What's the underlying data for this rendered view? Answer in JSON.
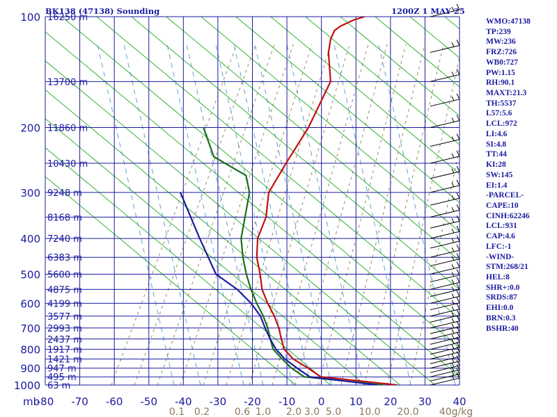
{
  "title": "BK138 (47138) Sounding",
  "date": "1200Z  1 MAY 25",
  "indices": [
    "WMO:47138",
    "TP:239",
    "MW:236",
    "FRZ:726",
    "WB0:727",
    "PW:1.15",
    "RH:90.1",
    "MAXT:21.3",
    "TH:5537",
    "L57:5.6",
    "LCL:972",
    "LI:4.6",
    "SI:4.8",
    "TT:44",
    "KI:28",
    "SW:145",
    "EI:1.4",
    "-PARCEL-",
    "CAPE:10",
    "CINH:62246",
    "LCL:931",
    "CAP:4.6",
    "LFC:-1",
    "-WIND-",
    "STM:268/21",
    "HEL:8",
    "SHR+:0.0",
    "SRDS:87",
    "EHI:0.0",
    "BRN:0.3",
    "BSHR:40"
  ],
  "chart_data": {
    "type": "line",
    "title": "BK138 (47138) Sounding",
    "xlabel": "",
    "ylabel": "mb",
    "xlim": [
      -80,
      0
    ],
    "ylim": [
      1000,
      100
    ],
    "x_scale": "linear",
    "y_scale": "log-pressure",
    "x_ticks": [
      -80,
      -70,
      -60,
      -50,
      -40,
      -30,
      -20,
      -10,
      0,
      10,
      20,
      30,
      40
    ],
    "x_tick_labels": [
      "-80",
      "-70",
      "-60",
      "-50",
      "-40",
      "-30",
      "-20",
      "-10",
      "0",
      "10",
      "20",
      "30",
      "40"
    ],
    "y_ticks": [
      1000,
      900,
      800,
      700,
      600,
      500,
      400,
      300,
      200,
      100
    ],
    "y_tick_labels": [
      "1000",
      "900",
      "800",
      "700",
      "600",
      "500",
      "400",
      "300",
      "200",
      "100"
    ],
    "height_labels": [
      {
        "p": 1000,
        "label": "63 m"
      },
      {
        "p": 950,
        "label": "495 m"
      },
      {
        "p": 900,
        "label": "947 m"
      },
      {
        "p": 850,
        "label": "1421 m"
      },
      {
        "p": 800,
        "label": "1917 m"
      },
      {
        "p": 750,
        "label": "2437 m"
      },
      {
        "p": 700,
        "label": "2993 m"
      },
      {
        "p": 650,
        "label": "3577 m"
      },
      {
        "p": 600,
        "label": "4199 m"
      },
      {
        "p": 550,
        "label": "4875 m"
      },
      {
        "p": 500,
        "label": "5600 m"
      },
      {
        "p": 450,
        "label": "6383 m"
      },
      {
        "p": 400,
        "label": "7240 m"
      },
      {
        "p": 350,
        "label": "8168 m"
      },
      {
        "p": 300,
        "label": "9248 m"
      },
      {
        "p": 250,
        "label": "10430 m"
      },
      {
        "p": 200,
        "label": "11860 m"
      },
      {
        "p": 150,
        "label": "13700 m"
      },
      {
        "p": 100,
        "label": "16250 m"
      }
    ],
    "mixing_ratio_labels": [
      "0.1",
      "0.2",
      "0.6",
      "1.0",
      "2.0",
      "3.0",
      "5.0",
      "10.0",
      "20.0",
      "40g/kg"
    ],
    "grid": true,
    "series": [
      {
        "name": "",
        "color": "#c01010",
        "x": [
          55,
          25,
          18,
          10,
          4,
          0,
          -4,
          -9,
          -15,
          -21,
          -26,
          -32,
          -37,
          -40,
          -46,
          -48,
          -50,
          -55,
          -64,
          -67,
          -68,
          -67,
          -64,
          -61
        ],
        "y": [
          1000,
          950,
          900,
          850,
          800,
          750,
          700,
          650,
          600,
          550,
          500,
          450,
          400,
          350,
          300,
          250,
          200,
          150,
          125,
          115,
          109,
          106,
          102,
          100
        ]
      },
      {
        "name": "",
        "color": "#1a6e1a",
        "x": [
          50,
          19,
          12,
          6,
          0,
          -4,
          -8,
          -13,
          -19,
          -25,
          -31,
          -37,
          -43,
          -53,
          -59,
          -76,
          -88
        ],
        "y": [
          1000,
          950,
          900,
          850,
          800,
          750,
          700,
          650,
          600,
          550,
          500,
          450,
          400,
          300,
          270,
          240,
          200
        ]
      },
      {
        "name": "",
        "color": "#1a1aa0",
        "x": [
          48,
          21,
          14,
          7,
          1,
          -4,
          -9,
          -14,
          -21,
          -30,
          -42,
          -58,
          -78
        ],
        "y": [
          1000,
          950,
          900,
          850,
          800,
          750,
          700,
          650,
          600,
          550,
          500,
          400,
          300
        ]
      }
    ]
  },
  "colors": {
    "background": "#ffffff",
    "isobar_isotherm": "#1a1aa0",
    "dry_adiabat": "#1fa81f",
    "moist_adiabat": "#8a7a5a",
    "mixing_ratio": "#4a9acc",
    "temperature": "#c01010",
    "dewpoint": "#1a6e1a",
    "parcel": "#1a1aa0",
    "wind_barb": "#000000"
  }
}
